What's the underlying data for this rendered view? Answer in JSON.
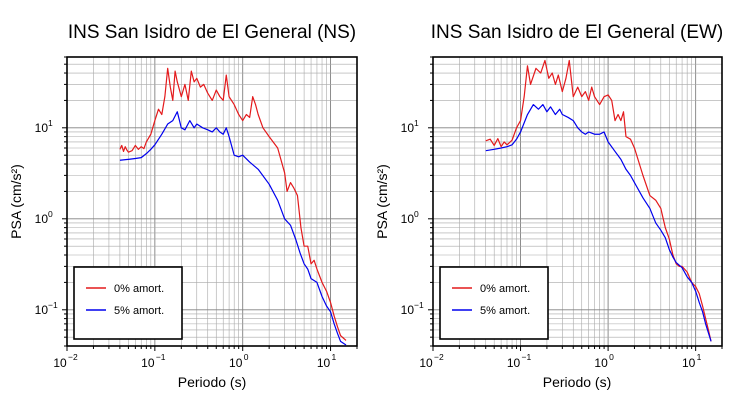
{
  "chart_data": [
    {
      "type": "line",
      "title": "INS San Isidro de El General (NS)",
      "xlabel": "Periodo (s)",
      "ylabel": "PSA (cm/s²)",
      "xscale": "log",
      "yscale": "log",
      "xlim": [
        0.01,
        20
      ],
      "ylim": [
        0.04,
        60
      ],
      "xticks": [
        {
          "base": "10",
          "exp": "−2"
        },
        {
          "base": "10",
          "exp": "−1"
        },
        {
          "base": "10",
          "exp": "0"
        },
        {
          "base": "10",
          "exp": "1"
        }
      ],
      "yticks": [
        {
          "base": "10",
          "exp": "−1"
        },
        {
          "base": "10",
          "exp": "0"
        },
        {
          "base": "10",
          "exp": "1"
        }
      ],
      "grid": true,
      "legend": "bottom-left",
      "series": [
        {
          "name": "0% amort.",
          "color": "#e41a1c",
          "points": [
            [
              0.04,
              5.8
            ],
            [
              0.042,
              6.4
            ],
            [
              0.044,
              5.5
            ],
            [
              0.046,
              6.2
            ],
            [
              0.048,
              5.7
            ],
            [
              0.05,
              5.4
            ],
            [
              0.055,
              5.6
            ],
            [
              0.06,
              6.4
            ],
            [
              0.065,
              5.8
            ],
            [
              0.07,
              6.2
            ],
            [
              0.075,
              5.9
            ],
            [
              0.08,
              7.0
            ],
            [
              0.09,
              8.5
            ],
            [
              0.1,
              12
            ],
            [
              0.11,
              16
            ],
            [
              0.12,
              14
            ],
            [
              0.13,
              22
            ],
            [
              0.14,
              45
            ],
            [
              0.15,
              28
            ],
            [
              0.16,
              20
            ],
            [
              0.17,
              42
            ],
            [
              0.18,
              32
            ],
            [
              0.2,
              22
            ],
            [
              0.22,
              30
            ],
            [
              0.24,
              20
            ],
            [
              0.26,
              42
            ],
            [
              0.28,
              32
            ],
            [
              0.3,
              35
            ],
            [
              0.33,
              28
            ],
            [
              0.36,
              30
            ],
            [
              0.4,
              24
            ],
            [
              0.45,
              20
            ],
            [
              0.5,
              26
            ],
            [
              0.55,
              22
            ],
            [
              0.6,
              20
            ],
            [
              0.65,
              38
            ],
            [
              0.7,
              22
            ],
            [
              0.8,
              18
            ],
            [
              0.9,
              14
            ],
            [
              1.0,
              12
            ],
            [
              1.1,
              14
            ],
            [
              1.2,
              13
            ],
            [
              1.3,
              22
            ],
            [
              1.4,
              18
            ],
            [
              1.5,
              14
            ],
            [
              1.7,
              10
            ],
            [
              2.0,
              8
            ],
            [
              2.5,
              6
            ],
            [
              3.0,
              3.2
            ],
            [
              3.2,
              2.0
            ],
            [
              3.5,
              2.5
            ],
            [
              3.8,
              2.2
            ],
            [
              4.2,
              1.8
            ],
            [
              4.6,
              0.8
            ],
            [
              5.0,
              0.5
            ],
            [
              5.5,
              0.5
            ],
            [
              6.0,
              0.32
            ],
            [
              6.5,
              0.35
            ],
            [
              7.0,
              0.28
            ],
            [
              8.0,
              0.2
            ],
            [
              9.0,
              0.16
            ],
            [
              10,
              0.12
            ],
            [
              11,
              0.085
            ],
            [
              12,
              0.065
            ],
            [
              13,
              0.052
            ],
            [
              15,
              0.046
            ]
          ]
        },
        {
          "name": "5% amort.",
          "color": "#0000ee",
          "points": [
            [
              0.04,
              4.4
            ],
            [
              0.05,
              4.5
            ],
            [
              0.06,
              4.6
            ],
            [
              0.07,
              4.7
            ],
            [
              0.08,
              5.2
            ],
            [
              0.09,
              5.8
            ],
            [
              0.1,
              6.5
            ],
            [
              0.12,
              8.5
            ],
            [
              0.14,
              11
            ],
            [
              0.16,
              12
            ],
            [
              0.18,
              15
            ],
            [
              0.2,
              10
            ],
            [
              0.22,
              9.5
            ],
            [
              0.25,
              12
            ],
            [
              0.28,
              10
            ],
            [
              0.3,
              11
            ],
            [
              0.35,
              10
            ],
            [
              0.4,
              9.5
            ],
            [
              0.45,
              9
            ],
            [
              0.5,
              10
            ],
            [
              0.55,
              9
            ],
            [
              0.6,
              8.5
            ],
            [
              0.65,
              10
            ],
            [
              0.7,
              8
            ],
            [
              0.8,
              5
            ],
            [
              0.9,
              4.8
            ],
            [
              1.0,
              5.0
            ],
            [
              1.2,
              4.2
            ],
            [
              1.5,
              3.5
            ],
            [
              2.0,
              2.4
            ],
            [
              2.5,
              1.6
            ],
            [
              3.0,
              1.0
            ],
            [
              3.5,
              0.85
            ],
            [
              4.0,
              0.6
            ],
            [
              4.5,
              0.42
            ],
            [
              5.0,
              0.32
            ],
            [
              5.5,
              0.28
            ],
            [
              6.0,
              0.22
            ],
            [
              7.0,
              0.2
            ],
            [
              8.0,
              0.14
            ],
            [
              9.0,
              0.11
            ],
            [
              10,
              0.095
            ],
            [
              11,
              0.07
            ],
            [
              12,
              0.055
            ],
            [
              13,
              0.045
            ],
            [
              15,
              0.041
            ]
          ]
        }
      ]
    },
    {
      "type": "line",
      "title": "INS San Isidro de El General (EW)",
      "xlabel": "Periodo (s)",
      "ylabel": "PSA (cm/s²)",
      "xscale": "log",
      "yscale": "log",
      "xlim": [
        0.01,
        20
      ],
      "ylim": [
        0.04,
        60
      ],
      "xticks": [
        {
          "base": "10",
          "exp": "−2"
        },
        {
          "base": "10",
          "exp": "−1"
        },
        {
          "base": "10",
          "exp": "0"
        },
        {
          "base": "10",
          "exp": "1"
        }
      ],
      "yticks": [
        {
          "base": "10",
          "exp": "−1"
        },
        {
          "base": "10",
          "exp": "0"
        },
        {
          "base": "10",
          "exp": "1"
        }
      ],
      "grid": true,
      "legend": "bottom-left",
      "series": [
        {
          "name": "0% amort.",
          "color": "#e41a1c",
          "points": [
            [
              0.04,
              7.2
            ],
            [
              0.045,
              7.5
            ],
            [
              0.05,
              6.4
            ],
            [
              0.055,
              7.6
            ],
            [
              0.06,
              6.2
            ],
            [
              0.065,
              7.0
            ],
            [
              0.07,
              6.5
            ],
            [
              0.08,
              7.3
            ],
            [
              0.09,
              10
            ],
            [
              0.1,
              12
            ],
            [
              0.11,
              22
            ],
            [
              0.12,
              48
            ],
            [
              0.13,
              30
            ],
            [
              0.15,
              45
            ],
            [
              0.17,
              40
            ],
            [
              0.19,
              55
            ],
            [
              0.21,
              35
            ],
            [
              0.23,
              40
            ],
            [
              0.25,
              30
            ],
            [
              0.27,
              38
            ],
            [
              0.3,
              25
            ],
            [
              0.33,
              35
            ],
            [
              0.36,
              55
            ],
            [
              0.4,
              22
            ],
            [
              0.45,
              28
            ],
            [
              0.5,
              22
            ],
            [
              0.55,
              25
            ],
            [
              0.6,
              20
            ],
            [
              0.65,
              28
            ],
            [
              0.7,
              22
            ],
            [
              0.8,
              18
            ],
            [
              0.9,
              22
            ],
            [
              1.0,
              23
            ],
            [
              1.1,
              20
            ],
            [
              1.2,
              12
            ],
            [
              1.3,
              14
            ],
            [
              1.4,
              12
            ],
            [
              1.5,
              15
            ],
            [
              1.6,
              8
            ],
            [
              1.8,
              7.5
            ],
            [
              2.0,
              6.0
            ],
            [
              2.5,
              3.0
            ],
            [
              3.0,
              1.8
            ],
            [
              3.5,
              1.6
            ],
            [
              4.0,
              1.3
            ],
            [
              4.5,
              0.8
            ],
            [
              5.0,
              0.6
            ],
            [
              5.5,
              0.4
            ],
            [
              6.0,
              0.32
            ],
            [
              6.5,
              0.3
            ],
            [
              7.0,
              0.3
            ],
            [
              8.0,
              0.26
            ],
            [
              9.0,
              0.2
            ],
            [
              10,
              0.18
            ],
            [
              11,
              0.15
            ],
            [
              12,
              0.11
            ],
            [
              13,
              0.08
            ],
            [
              14,
              0.06
            ],
            [
              15,
              0.045
            ]
          ]
        },
        {
          "name": "5% amort.",
          "color": "#0000ee",
          "points": [
            [
              0.04,
              5.6
            ],
            [
              0.05,
              5.8
            ],
            [
              0.06,
              6.0
            ],
            [
              0.07,
              6.2
            ],
            [
              0.08,
              6.5
            ],
            [
              0.09,
              7.5
            ],
            [
              0.1,
              9
            ],
            [
              0.12,
              14
            ],
            [
              0.14,
              18
            ],
            [
              0.16,
              16
            ],
            [
              0.18,
              18
            ],
            [
              0.2,
              15
            ],
            [
              0.22,
              17
            ],
            [
              0.25,
              14
            ],
            [
              0.28,
              16
            ],
            [
              0.3,
              14
            ],
            [
              0.35,
              13
            ],
            [
              0.4,
              12
            ],
            [
              0.45,
              10
            ],
            [
              0.5,
              9
            ],
            [
              0.55,
              8.5
            ],
            [
              0.6,
              9
            ],
            [
              0.7,
              8.5
            ],
            [
              0.8,
              8.5
            ],
            [
              0.9,
              9
            ],
            [
              1.0,
              7
            ],
            [
              1.2,
              5.5
            ],
            [
              1.4,
              4.5
            ],
            [
              1.6,
              3.5
            ],
            [
              1.8,
              3.0
            ],
            [
              2.0,
              2.5
            ],
            [
              2.5,
              1.7
            ],
            [
              3.0,
              1.3
            ],
            [
              3.5,
              0.9
            ],
            [
              4.0,
              0.75
            ],
            [
              4.5,
              0.62
            ],
            [
              5.0,
              0.46
            ],
            [
              5.5,
              0.38
            ],
            [
              6.0,
              0.33
            ],
            [
              7.0,
              0.29
            ],
            [
              8.0,
              0.23
            ],
            [
              9.0,
              0.2
            ],
            [
              10,
              0.16
            ],
            [
              11,
              0.12
            ],
            [
              12,
              0.095
            ],
            [
              13,
              0.07
            ],
            [
              15,
              0.045
            ]
          ]
        }
      ]
    }
  ]
}
